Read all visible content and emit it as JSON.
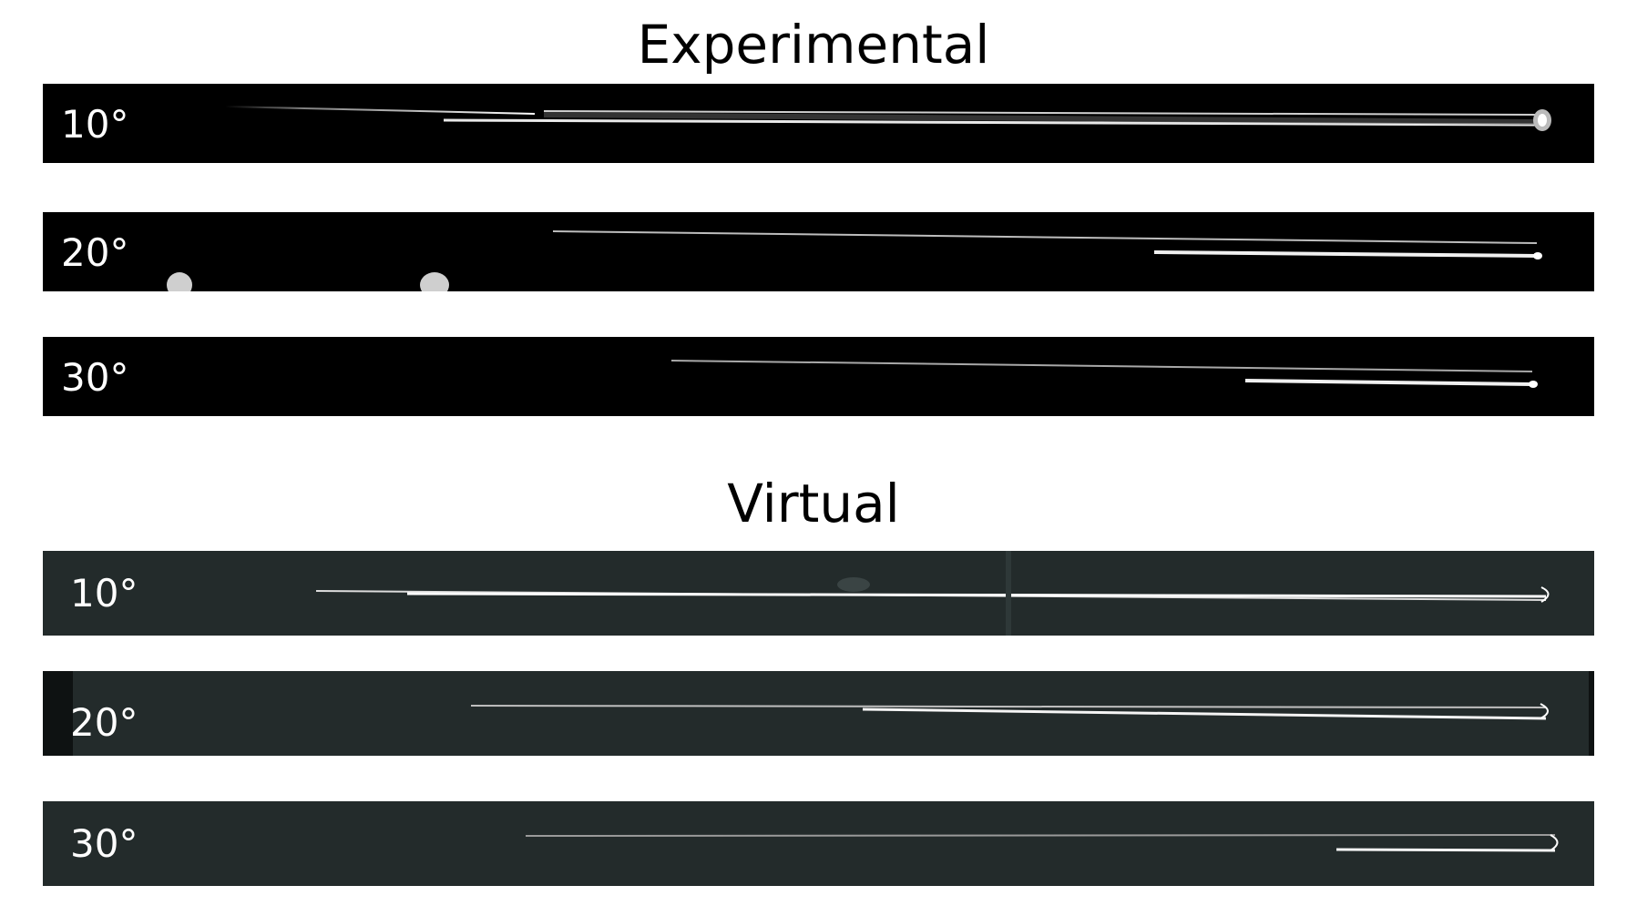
{
  "experimental": {
    "title": "Experimental",
    "panels": [
      {
        "angle_label": "10°"
      },
      {
        "angle_label": "20°"
      },
      {
        "angle_label": "30°"
      }
    ]
  },
  "virtual": {
    "title": "Virtual",
    "panels": [
      {
        "angle_label": "10°"
      },
      {
        "angle_label": "20°"
      },
      {
        "angle_label": "30°"
      }
    ]
  },
  "colors": {
    "experimental_background": "#000000",
    "virtual_background": "#232b2b",
    "label_text": "#ffffff",
    "scratch_highlight": "#f2f2f2"
  }
}
